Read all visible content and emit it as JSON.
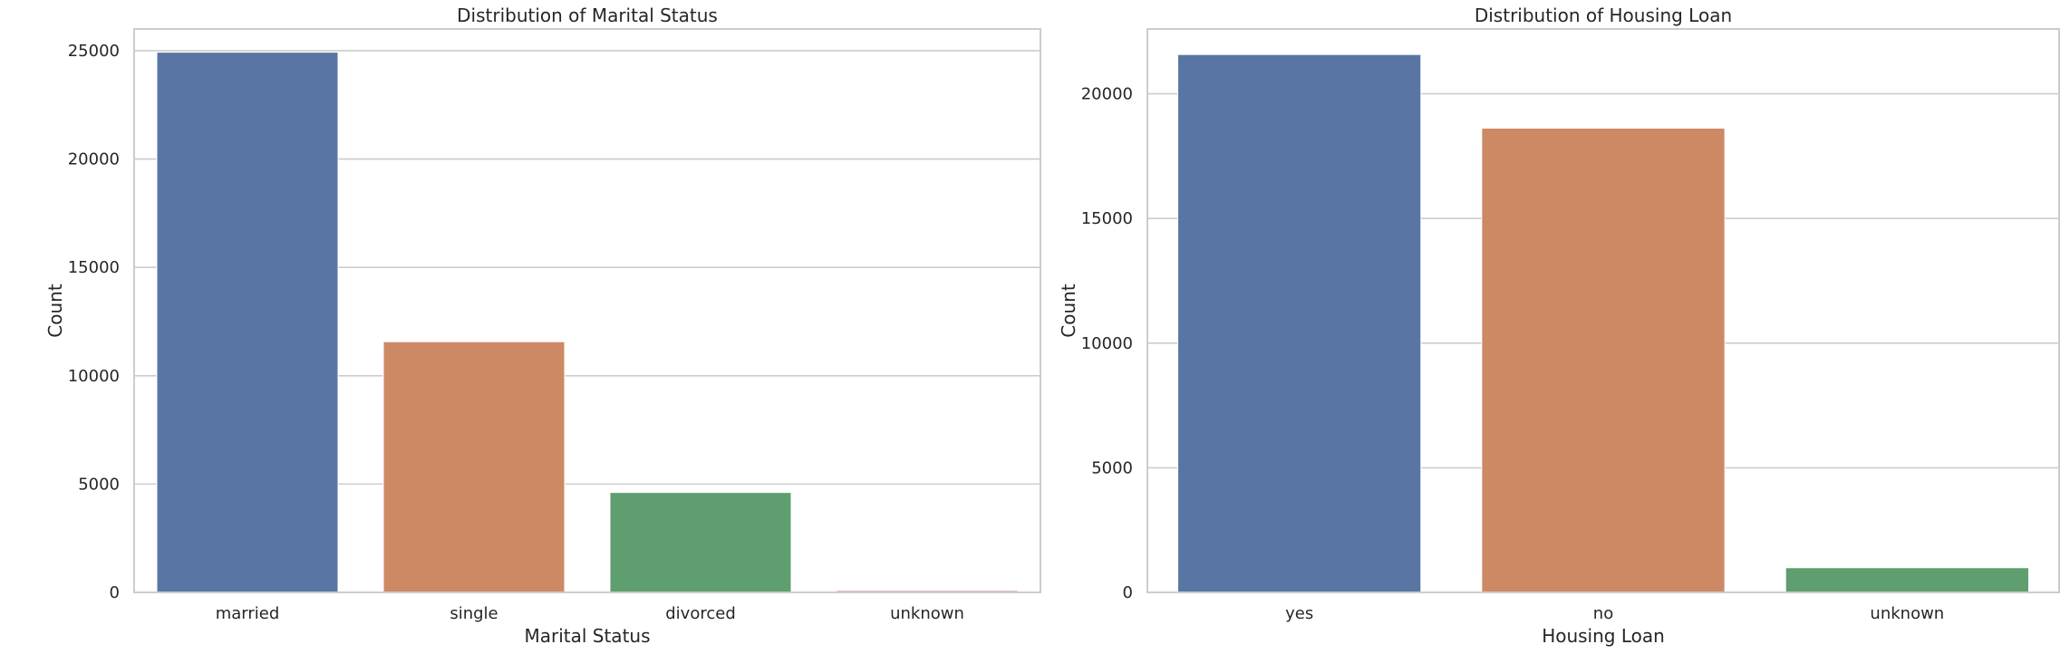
{
  "chart_data": [
    {
      "type": "bar",
      "title": "Distribution of Marital Status",
      "xlabel": "Marital Status",
      "ylabel": "Count",
      "categories": [
        "married",
        "single",
        "divorced",
        "unknown"
      ],
      "values": [
        24928,
        11568,
        4612,
        80
      ],
      "colors": [
        "#5975a4",
        "#cc8963",
        "#5f9e6e",
        "#b55d60"
      ],
      "ylim": [
        0,
        26000
      ],
      "yticks": [
        0,
        5000,
        10000,
        15000,
        20000,
        25000
      ],
      "ytick_labels": [
        "0",
        "5000",
        "10000",
        "15000",
        "20000",
        "25000"
      ],
      "grid": true,
      "grid_axis": "y"
    },
    {
      "type": "bar",
      "title": "Distribution of Housing Loan",
      "xlabel": "Housing Loan",
      "ylabel": "Count",
      "categories": [
        "yes",
        "no",
        "unknown"
      ],
      "values": [
        21576,
        18622,
        990
      ],
      "colors": [
        "#5975a4",
        "#cc8963",
        "#5f9e6e"
      ],
      "ylim": [
        0,
        22600
      ],
      "yticks": [
        0,
        5000,
        10000,
        15000,
        20000
      ],
      "ytick_labels": [
        "0",
        "5000",
        "10000",
        "15000",
        "20000"
      ],
      "grid": true,
      "grid_axis": "y"
    }
  ]
}
